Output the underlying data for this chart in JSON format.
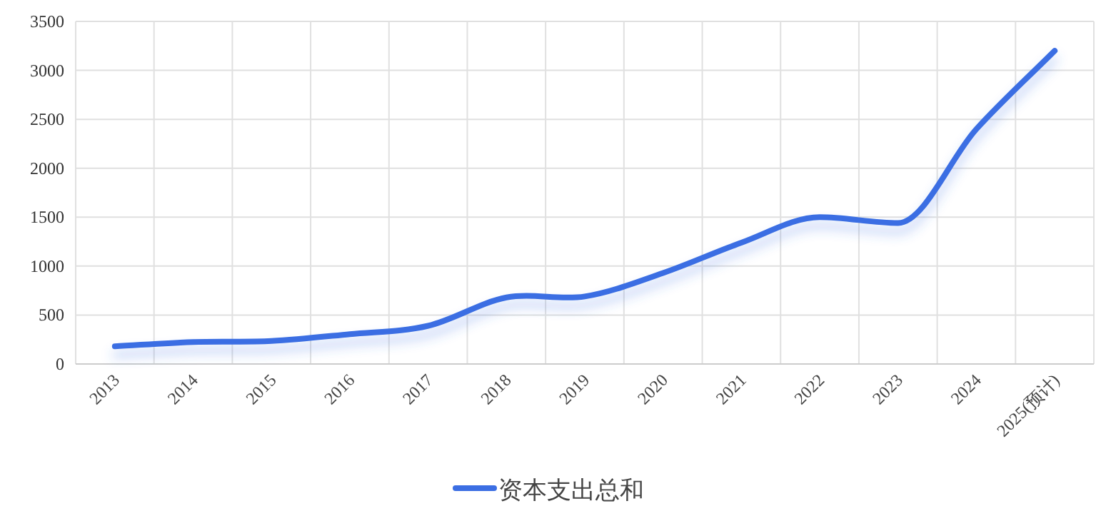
{
  "chart_data": {
    "type": "line",
    "categories": [
      "2013",
      "2014",
      "2015",
      "2016",
      "2017",
      "2018",
      "2019",
      "2020",
      "2021",
      "2022",
      "2023",
      "2024",
      "2025(预计)"
    ],
    "series": [
      {
        "name": "资本支出总和",
        "color": "#3b6ee3",
        "values": [
          180,
          225,
          235,
          305,
          390,
          680,
          690,
          930,
          1240,
          1500,
          1440,
          2400,
          3200
        ]
      }
    ],
    "ylim": [
      0,
      3500
    ],
    "yticks": [
      0,
      500,
      1000,
      1500,
      2000,
      2500,
      3000,
      3500
    ],
    "grid": true,
    "legend": "bottom",
    "line_style": "solid"
  }
}
